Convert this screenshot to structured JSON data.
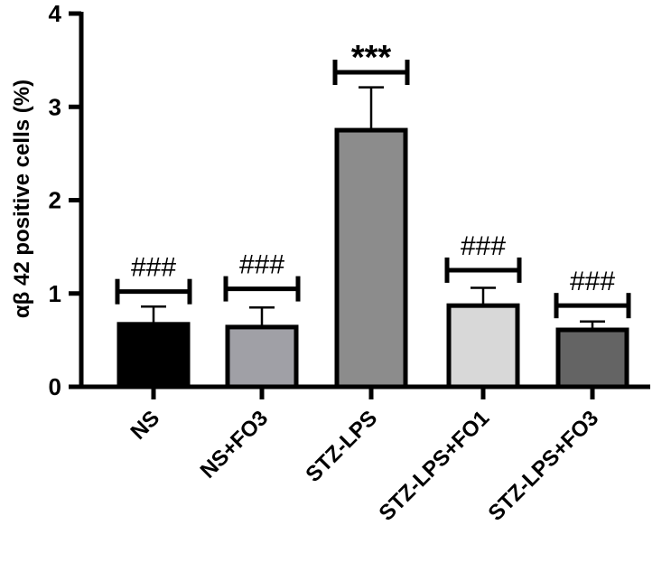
{
  "chart_data": {
    "type": "bar",
    "title": "",
    "xlabel": "",
    "ylabel": "αβ 42 positive cells (%)",
    "ylim": [
      0,
      4
    ],
    "yticks": [
      0,
      1,
      2,
      3,
      4
    ],
    "ytick_labels": [
      "0",
      "1",
      "2",
      "3",
      "4"
    ],
    "grid": false,
    "categories": [
      "NS",
      "NS+FO3",
      "STZ-LPS",
      "STZ-LPS+FO1",
      "STZ-LPS+FO3"
    ],
    "values": [
      0.67,
      0.64,
      2.75,
      0.87,
      0.61
    ],
    "errors": [
      0.19,
      0.21,
      0.46,
      0.19,
      0.09
    ],
    "bar_colors": [
      "#000000",
      "#a0a0a6",
      "#8c8c8c",
      "#d8d8d8",
      "#646464"
    ],
    "annotations": [
      {
        "category": "NS",
        "text": "###",
        "bracket_value": 1.02
      },
      {
        "category": "NS+FO3",
        "text": "###",
        "bracket_value": 1.05
      },
      {
        "category": "STZ-LPS",
        "text": "***",
        "bracket_value": 3.37
      },
      {
        "category": "STZ-LPS+FO1",
        "text": "###",
        "bracket_value": 1.25
      },
      {
        "category": "STZ-LPS+FO3",
        "text": "###",
        "bracket_value": 0.87
      }
    ]
  }
}
